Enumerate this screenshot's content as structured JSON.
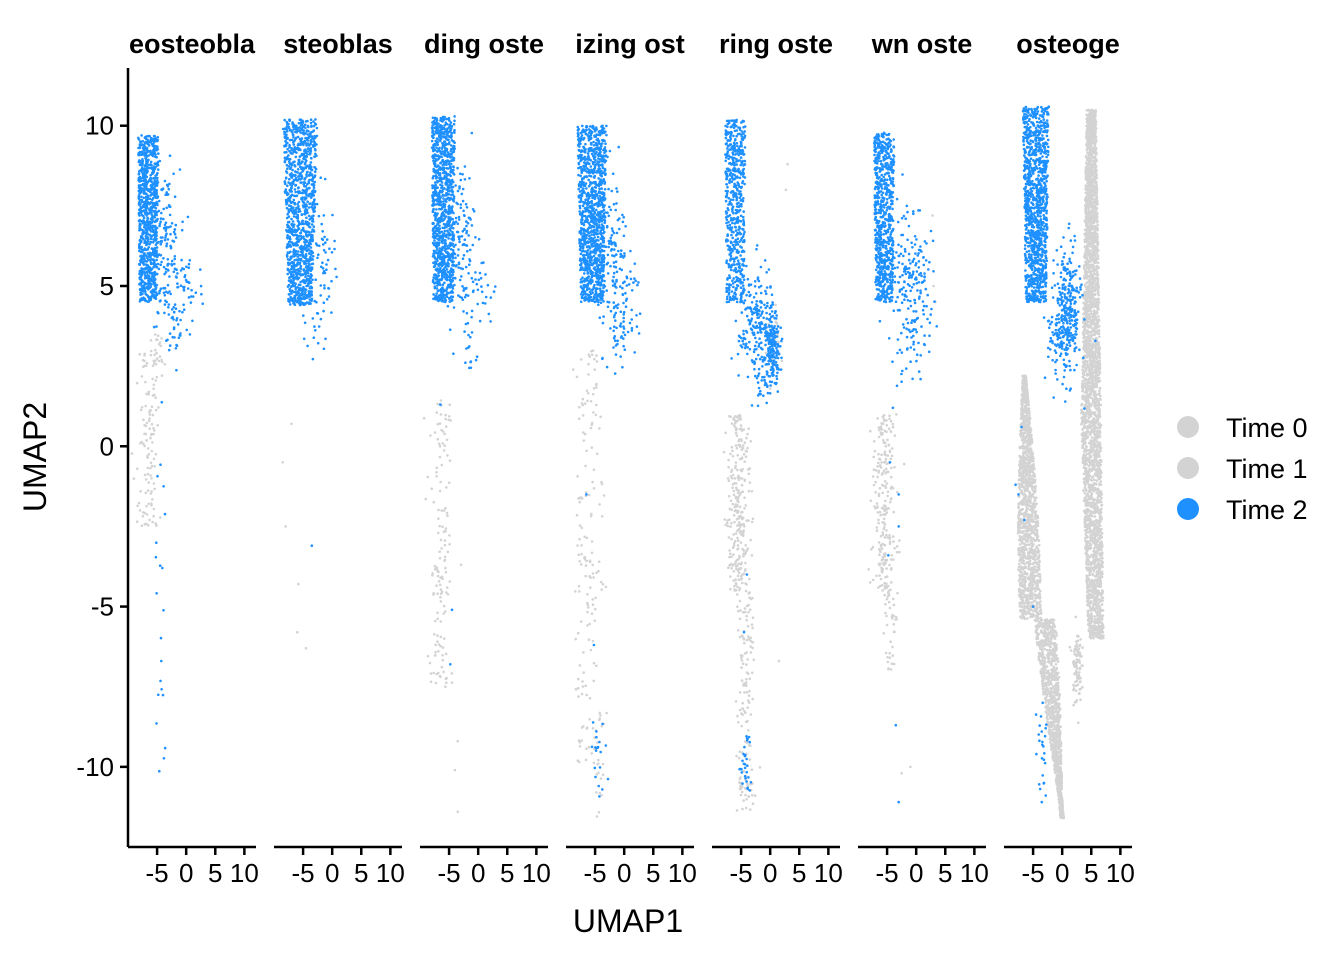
{
  "chart_data": {
    "type": "scatter",
    "xlabel": "UMAP1",
    "ylabel": "UMAP2",
    "xlim": [
      -10,
      12
    ],
    "ylim": [
      -12.5,
      11.8
    ],
    "x_ticks": [
      -5,
      0,
      5,
      10
    ],
    "x_tick_labels": [
      "-5",
      "0",
      "5",
      "10"
    ],
    "y_ticks": [
      10,
      5,
      0,
      -5,
      -10
    ],
    "y_tick_labels": [
      "10",
      "5",
      "0",
      "-5",
      "-10"
    ],
    "grid": false,
    "legend_position": "right",
    "panels": [
      {
        "title": "eosteobla"
      },
      {
        "title": "steoblas"
      },
      {
        "title": "ding oste"
      },
      {
        "title": "izing ost"
      },
      {
        "title": "ring oste"
      },
      {
        "title": "wn oste"
      },
      {
        "title": "osteoge"
      }
    ],
    "series": [
      {
        "name": "Time 0",
        "color": "#d3d3d3"
      },
      {
        "name": "Time 1",
        "color": "#d3d3d3"
      },
      {
        "name": "Time 2",
        "color": "#1e90ff"
      }
    ]
  }
}
